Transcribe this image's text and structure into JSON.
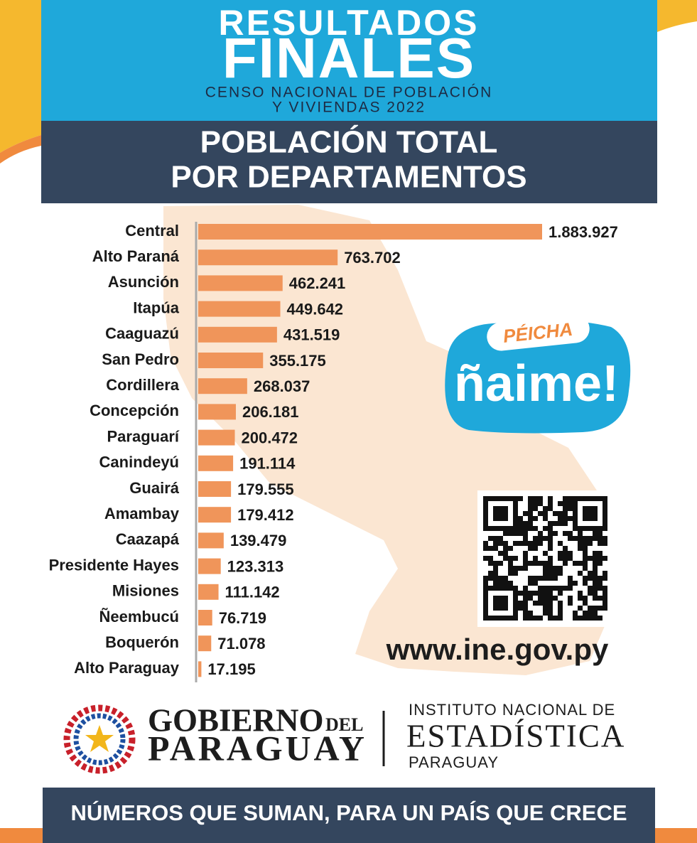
{
  "header": {
    "title_line1": "RESULTADOS",
    "title_line2": "FINALES",
    "subtitle_line1": "CENSO NACIONAL DE POBLACIÓN",
    "subtitle_line2": "Y VIVIENDAS 2022"
  },
  "section_title": {
    "line1": "POBLACIÓN TOTAL",
    "line2": "POR DEPARTAMENTOS"
  },
  "chart_data": {
    "type": "bar",
    "orientation": "horizontal",
    "categories": [
      "Central",
      "Alto Paraná",
      "Asunción",
      "Itapúa",
      "Caaguazú",
      "San Pedro",
      "Cordillera",
      "Concepción",
      "Paraguarí",
      "Canindeyú",
      "Guairá",
      "Amambay",
      "Caazapá",
      "Presidente Hayes",
      "Misiones",
      "Ñeembucú",
      "Boquerón",
      "Alto Paraguay"
    ],
    "values": [
      1883927,
      763702,
      462241,
      449642,
      431519,
      355175,
      268037,
      206181,
      200472,
      191114,
      179555,
      179412,
      139479,
      123313,
      111142,
      76719,
      71078,
      17195
    ],
    "value_labels": [
      "1.883.927",
      "763.702",
      "462.241",
      "449.642",
      "431.519",
      "355.175",
      "268.037",
      "206.181",
      "200.472",
      "191.114",
      "179.555",
      "179.412",
      "139.479",
      "123.313",
      "111.142",
      "76.719",
      "71.078",
      "17.195"
    ],
    "color": "#f0955a"
  },
  "campaign": {
    "small": "PÉICHA",
    "big": "ñaime!"
  },
  "website": "www.ine.gov.py",
  "logos": {
    "gobierno": {
      "line1": "GOBIERNO",
      "del": "DEL",
      "line2": "PARAGUAY"
    },
    "ine": {
      "line1": "INSTITUTO NACIONAL DE",
      "line2": "ESTADÍSTICA",
      "line3": "PARAGUAY"
    }
  },
  "footer": "NÚMEROS QUE SUMAN, PARA UN PAÍS QUE CRECE"
}
